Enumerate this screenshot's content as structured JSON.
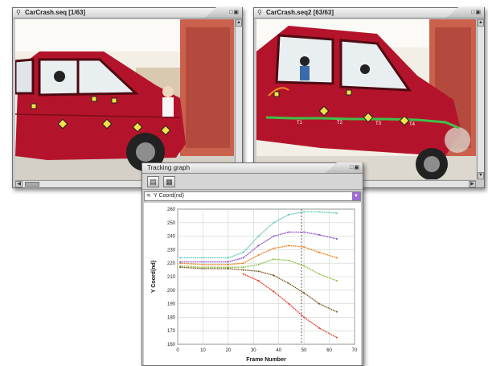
{
  "windows": {
    "left": {
      "title": "CarCrash.seq [1/63]"
    },
    "right": {
      "title": "CarCrash.seq2 [63/63]"
    },
    "tracking": {
      "title": "Tracking graph",
      "select_label": "Y Coord(nd)"
    }
  },
  "icons": {
    "window_icon": "magnifier-icon",
    "open_button": "folder-icon",
    "graph_button": "graph-icon",
    "dropdown": "chevron-down-icon"
  },
  "photo_labels": [
    "T1",
    "T2",
    "T3",
    "T4"
  ],
  "colors": {
    "car_red": "#b4142b",
    "track_green": "#3fbf4a",
    "window_frame": "#c9c9c9"
  },
  "chart_data": {
    "type": "line",
    "xlabel": "Frame Number",
    "ylabel": "Y Coord(nd)",
    "xlim": [
      0,
      70
    ],
    "ylim": [
      160,
      260
    ],
    "x_ticks": [
      0,
      10,
      20,
      30,
      40,
      50,
      60,
      70
    ],
    "y_ticks": [
      160,
      170,
      180,
      190,
      200,
      210,
      220,
      230,
      240,
      250,
      260
    ],
    "grid": true,
    "marker_x": 49,
    "series": [
      {
        "color": "#5fc7b8",
        "x": [
          1,
          10,
          20,
          26,
          32,
          38,
          44,
          50,
          56,
          63
        ],
        "values": [
          224,
          224,
          224,
          228,
          240,
          250,
          256,
          258,
          258,
          257
        ]
      },
      {
        "color": "#8f4fcf",
        "x": [
          1,
          10,
          20,
          26,
          32,
          38,
          44,
          50,
          56,
          63
        ],
        "values": [
          221,
          221,
          221,
          224,
          233,
          240,
          243,
          243,
          241,
          238
        ]
      },
      {
        "color": "#ef7f22",
        "x": [
          1,
          10,
          20,
          26,
          32,
          38,
          44,
          50,
          56,
          63
        ],
        "values": [
          220,
          219,
          219,
          220,
          226,
          231,
          233,
          232,
          228,
          224
        ]
      },
      {
        "color": "#8fc04a",
        "x": [
          1,
          10,
          20,
          26,
          32,
          38,
          44,
          50,
          56,
          63
        ],
        "values": [
          218,
          217,
          217,
          217,
          219,
          223,
          222,
          218,
          212,
          207
        ]
      },
      {
        "color": "#7a5a22",
        "x": [
          1,
          10,
          20,
          26,
          32,
          38,
          44,
          50,
          56,
          63
        ],
        "values": [
          217,
          216,
          216,
          215,
          214,
          211,
          205,
          198,
          190,
          184
        ]
      },
      {
        "color": "#e53c2c",
        "x": [
          26,
          32,
          38,
          44,
          50,
          56,
          63
        ],
        "values": [
          212,
          207,
          199,
          190,
          180,
          172,
          165
        ]
      }
    ]
  }
}
